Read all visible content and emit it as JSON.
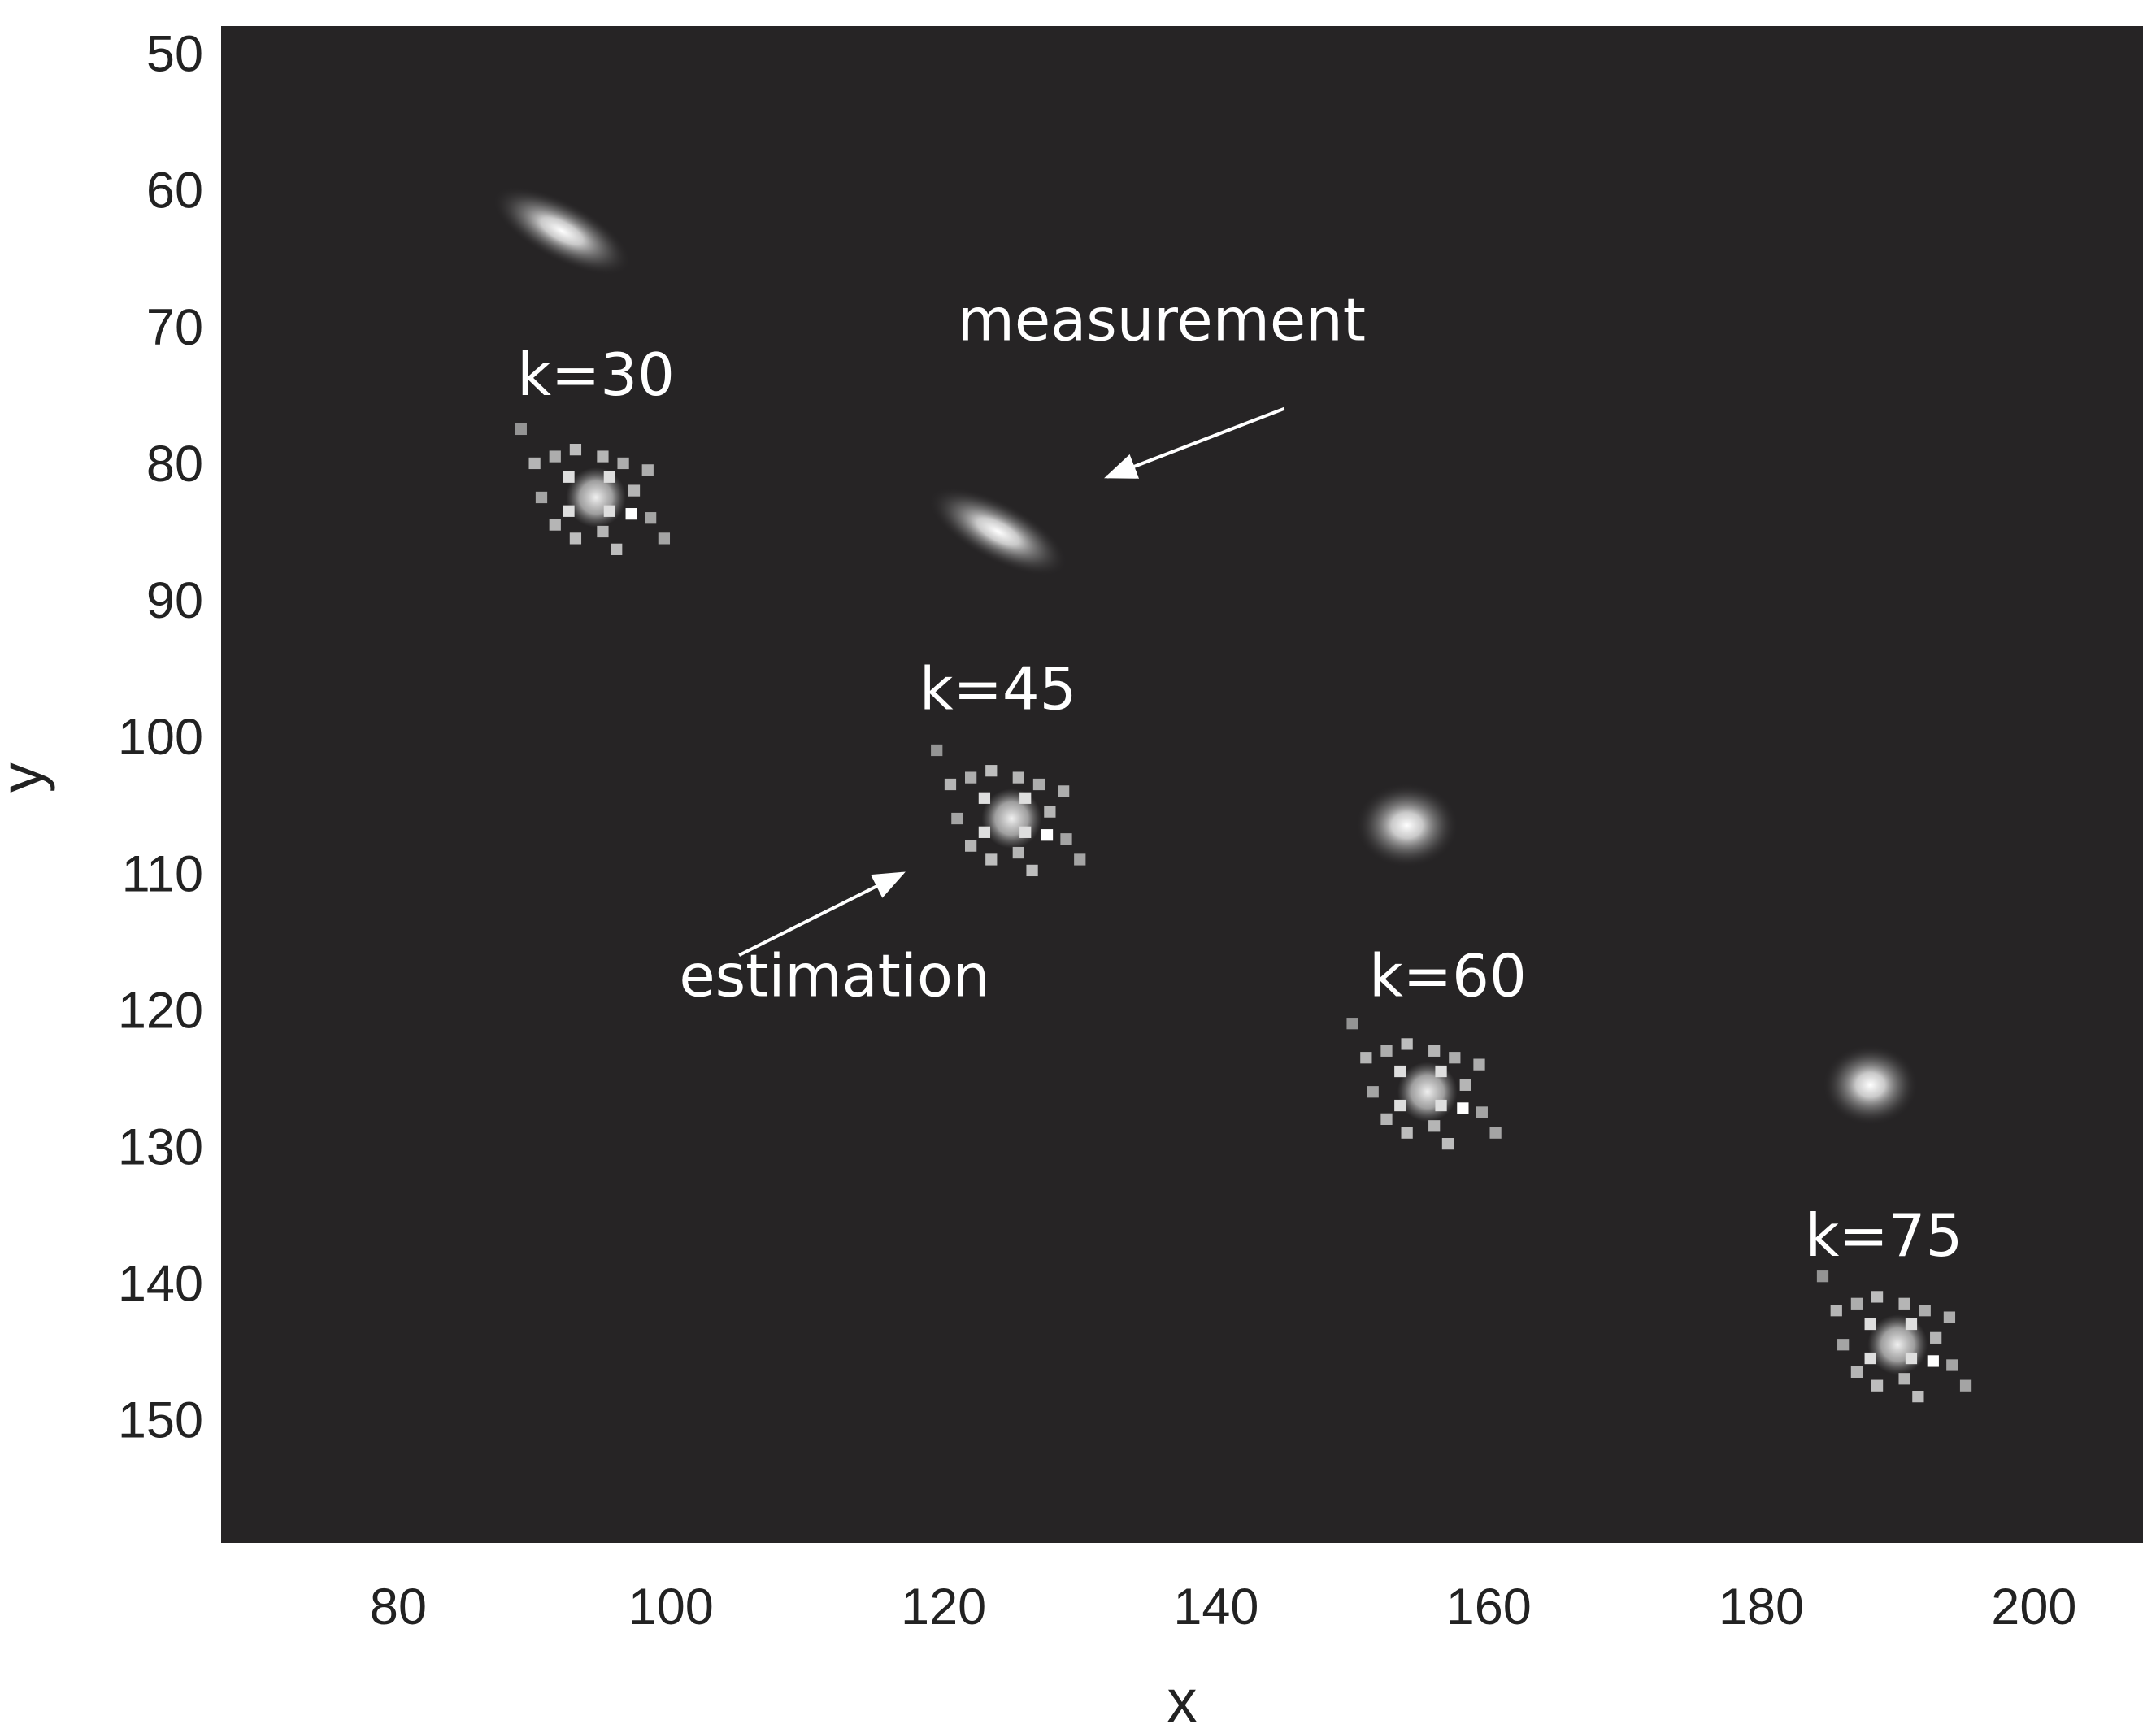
{
  "chart_data": {
    "type": "heatmap",
    "title": "",
    "xlabel": "x",
    "ylabel": "y",
    "xlim": [
      67,
      208
    ],
    "ylim": [
      159,
      48
    ],
    "y_reversed": true,
    "grid": false,
    "legend": "none",
    "xticks": [
      80,
      100,
      120,
      140,
      160,
      180,
      200
    ],
    "yticks": [
      50,
      60,
      70,
      80,
      90,
      100,
      110,
      120,
      130,
      140,
      150
    ],
    "background_color": "#262425",
    "mark_color": "#ffffff",
    "measurements": [
      {
        "x": 92,
        "y": 63,
        "sx": 4.2,
        "sy": 1.6,
        "angle_deg": 28
      },
      {
        "x": 124,
        "y": 85,
        "sx": 4.2,
        "sy": 1.6,
        "angle_deg": 28
      },
      {
        "x": 154,
        "y": 106.5,
        "sx": 2.8,
        "sy": 2.3,
        "angle_deg": 0
      },
      {
        "x": 188,
        "y": 125.5,
        "sx": 2.6,
        "sy": 2.2,
        "angle_deg": 0
      }
    ],
    "estimates": [
      {
        "k": "k=30",
        "x": 94.5,
        "y": 82.5
      },
      {
        "k": "k=45",
        "x": 125,
        "y": 106
      },
      {
        "k": "k=60",
        "x": 155.5,
        "y": 126
      },
      {
        "k": "k=75",
        "x": 190,
        "y": 144.5
      }
    ],
    "step_labels": [
      {
        "text": "k=30",
        "x": 94.5,
        "y": 75
      },
      {
        "text": "k=45",
        "x": 124,
        "y": 98
      },
      {
        "text": "k=60",
        "x": 157,
        "y": 119
      },
      {
        "text": "k=75",
        "x": 189,
        "y": 138
      }
    ],
    "annotations": [
      {
        "text": "measurement",
        "x": 136,
        "y": 71,
        "arrow_from": [
          145,
          76
        ],
        "arrow_to": [
          132,
          81
        ]
      },
      {
        "text": "estimation",
        "x": 112,
        "y": 119,
        "arrow_from": [
          105,
          116
        ],
        "arrow_to": [
          117,
          110
        ]
      }
    ]
  }
}
